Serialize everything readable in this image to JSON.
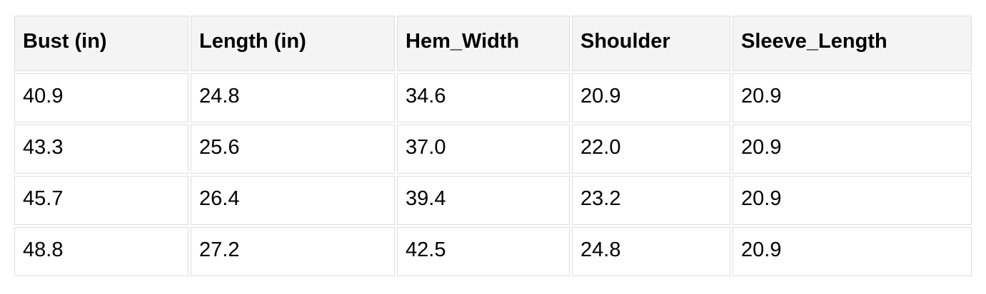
{
  "chart_data": {
    "type": "table",
    "title": "",
    "columns": [
      "Bust (in)",
      "Length (in)",
      "Hem_Width",
      "Shoulder",
      "Sleeve_Length"
    ],
    "rows": [
      [
        "40.9",
        "24.8",
        "34.6",
        "20.9",
        "20.9"
      ],
      [
        "43.3",
        "25.6",
        "37.0",
        "22.0",
        "20.9"
      ],
      [
        "45.7",
        "26.4",
        "39.4",
        "23.2",
        "20.9"
      ],
      [
        "48.8",
        "27.2",
        "42.5",
        "24.8",
        "20.9"
      ]
    ]
  },
  "colors": {
    "page_bg": "#ffffff",
    "header_bg": "#f4f4f4",
    "cell_bg": "#ffffff",
    "border": "#dddddd",
    "text": "#000000"
  }
}
